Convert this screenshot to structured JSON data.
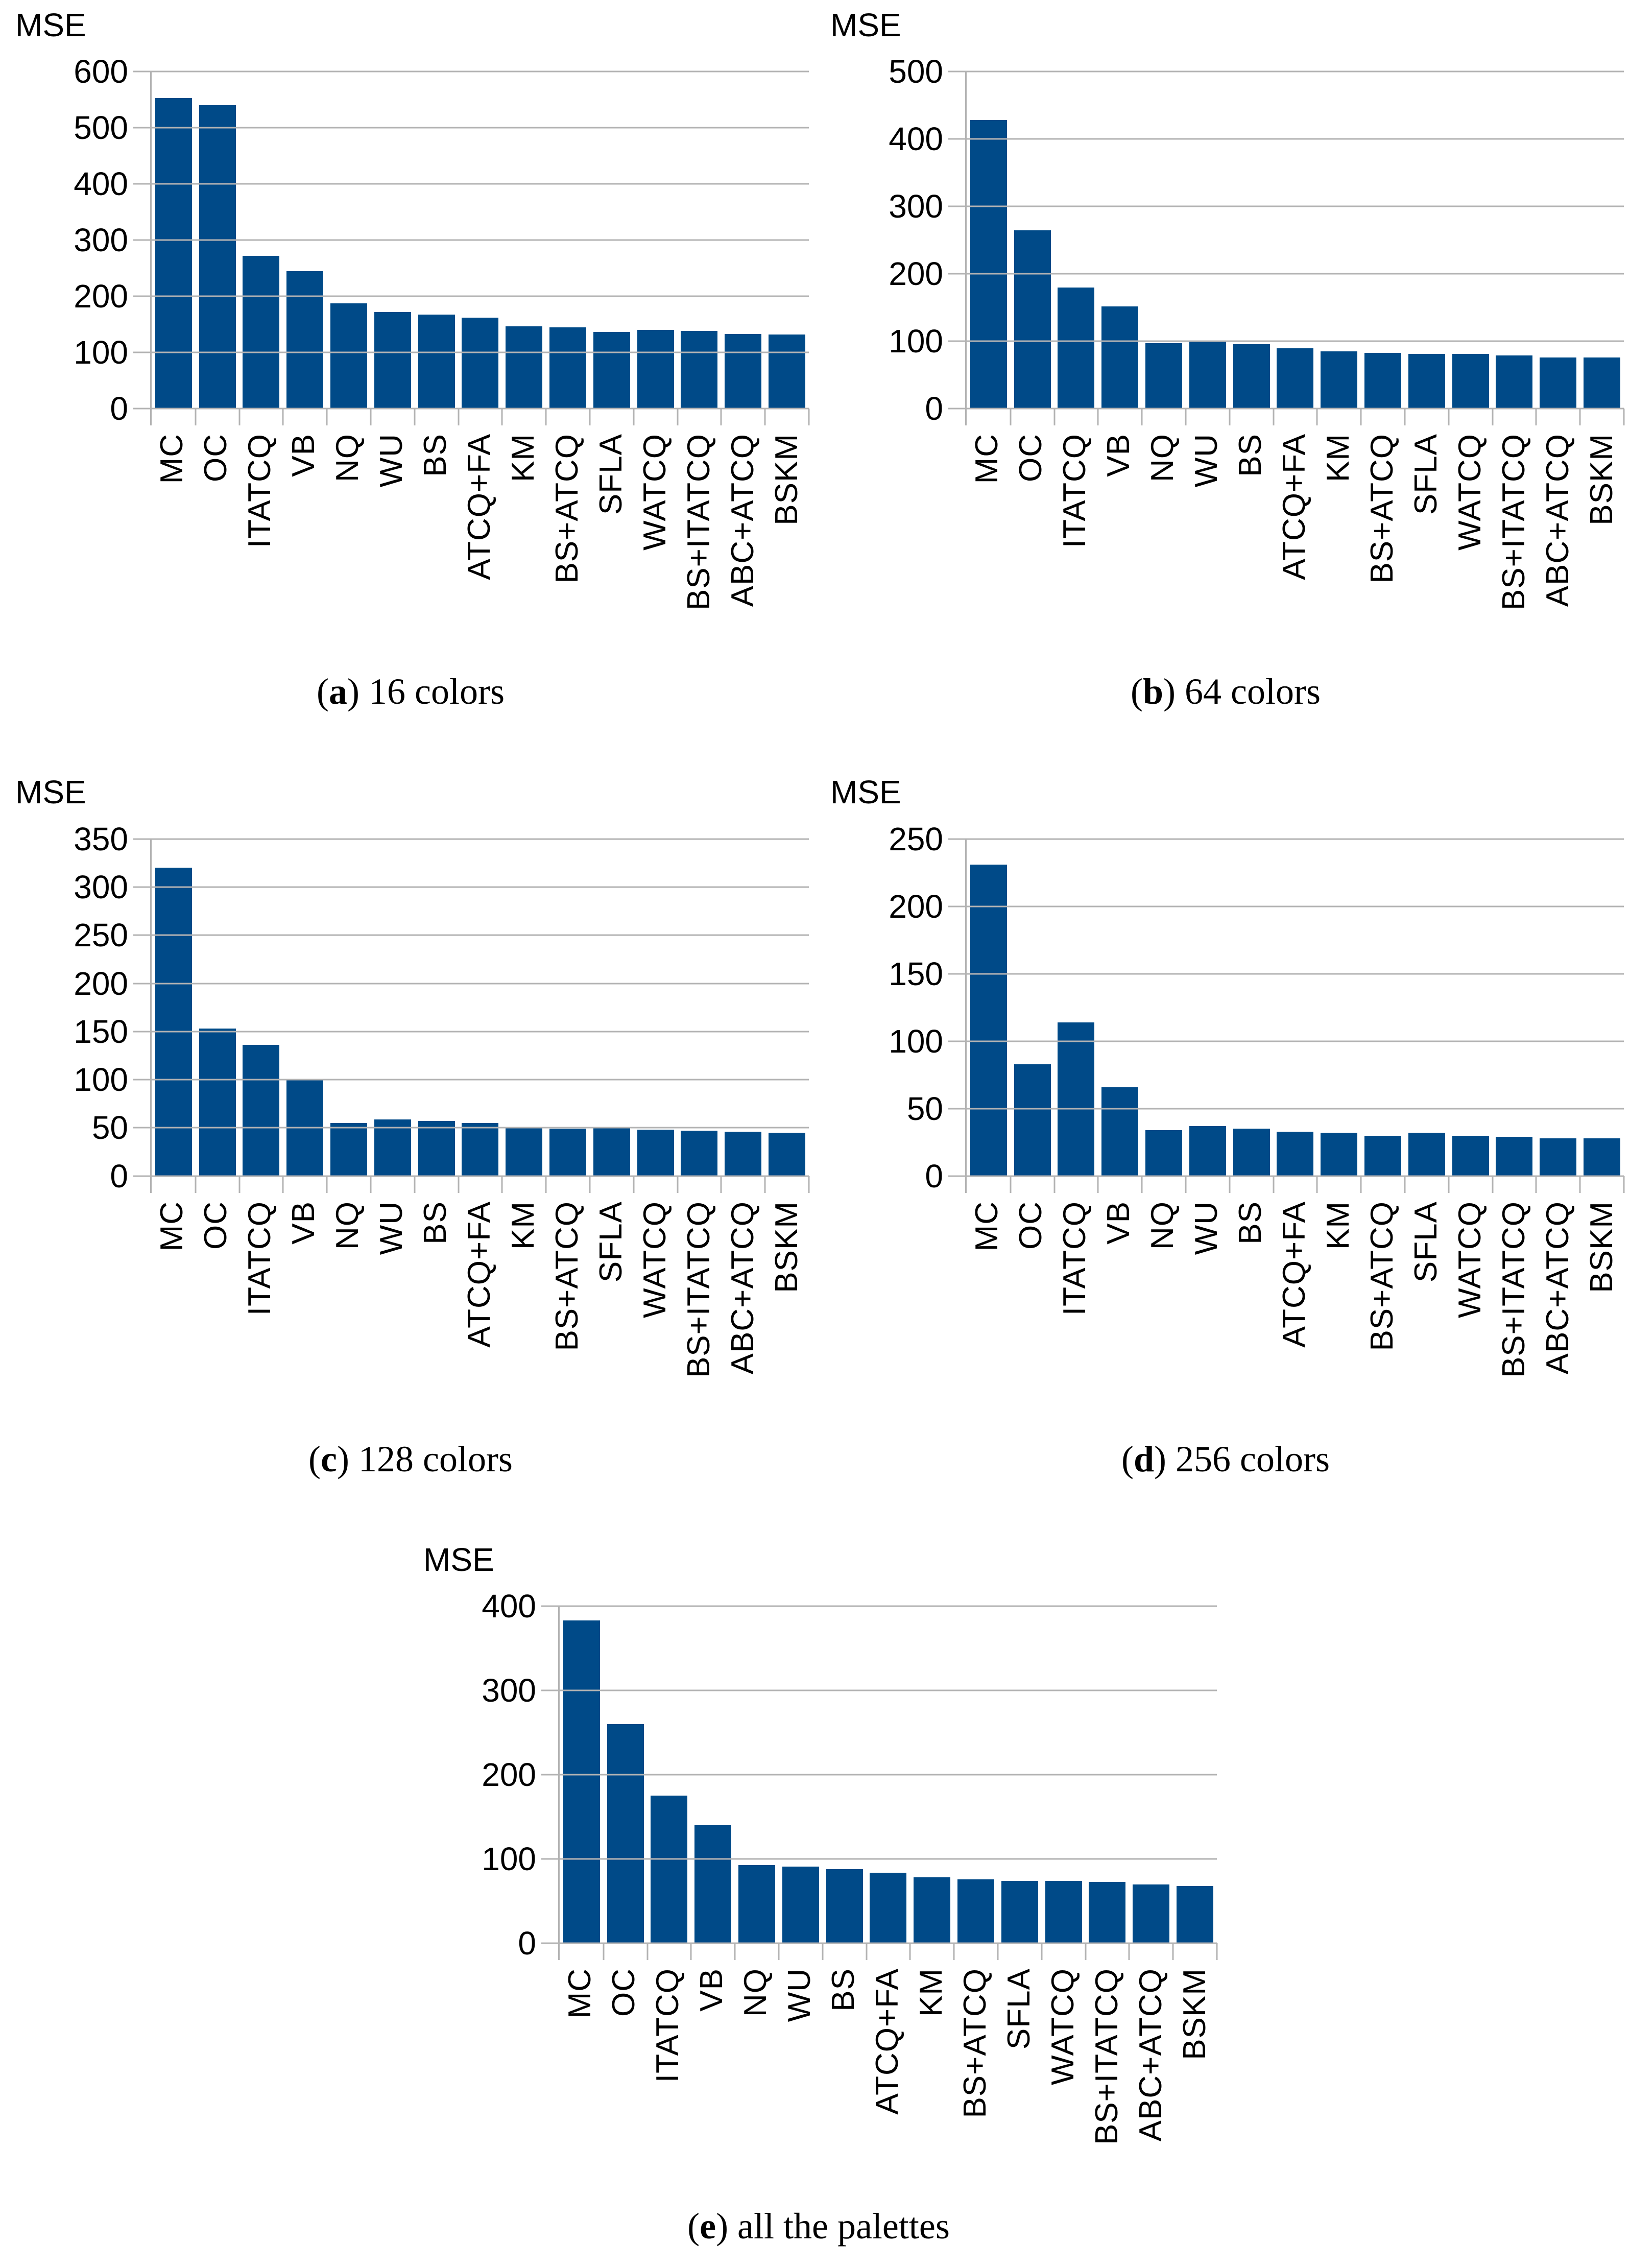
{
  "colors": {
    "bar": "#004a88",
    "grid": "#b3b3b3",
    "text": "#000000"
  },
  "chart_data": [
    {
      "type": "bar",
      "ylabel": "MSE",
      "caption": {
        "pre": "(",
        "letter": "a",
        "post": ") ",
        "label": "16 colors"
      },
      "categories": [
        "MC",
        "OC",
        "ITATCQ",
        "VB",
        "NQ",
        "WU",
        "BS",
        "ATCQ+FA",
        "KM",
        "BS+ATCQ",
        "SFLA",
        "WATCQ",
        "BS+ITATCQ",
        "ABC+ATCQ",
        "BSKM"
      ],
      "values": [
        553,
        540,
        272,
        245,
        188,
        172,
        168,
        162,
        147,
        145,
        137,
        140,
        139,
        133,
        132
      ],
      "ylim": [
        0,
        600
      ],
      "yticks": [
        0,
        100,
        200,
        300,
        400,
        500,
        600
      ],
      "grid": true,
      "legend": "none"
    },
    {
      "type": "bar",
      "ylabel": "MSE",
      "caption": {
        "pre": "(",
        "letter": "b",
        "post": ") ",
        "label": "64 colors"
      },
      "categories": [
        "MC",
        "OC",
        "ITATCQ",
        "VB",
        "NQ",
        "WU",
        "BS",
        "ATCQ+FA",
        "KM",
        "BS+ATCQ",
        "SFLA",
        "WATCQ",
        "BS+ITATCQ",
        "ABC+ATCQ",
        "BSKM"
      ],
      "values": [
        428,
        265,
        180,
        152,
        97,
        100,
        96,
        90,
        85,
        83,
        81,
        81,
        79,
        76,
        76
      ],
      "ylim": [
        0,
        500
      ],
      "yticks": [
        0,
        100,
        200,
        300,
        400,
        500
      ],
      "grid": true,
      "legend": "none"
    },
    {
      "type": "bar",
      "ylabel": "MSE",
      "caption": {
        "pre": "(",
        "letter": "c",
        "post": ") ",
        "label": "128 colors"
      },
      "categories": [
        "MC",
        "OC",
        "ITATCQ",
        "VB",
        "NQ",
        "WU",
        "BS",
        "ATCQ+FA",
        "KM",
        "BS+ATCQ",
        "SFLA",
        "WATCQ",
        "BS+ITATCQ",
        "ABC+ATCQ",
        "BSKM"
      ],
      "values": [
        320,
        153,
        136,
        100,
        55,
        59,
        57,
        55,
        51,
        49,
        51,
        48,
        47,
        46,
        45
      ],
      "ylim": [
        0,
        350
      ],
      "yticks": [
        0,
        50,
        100,
        150,
        200,
        250,
        300,
        350
      ],
      "grid": true,
      "legend": "none"
    },
    {
      "type": "bar",
      "ylabel": "MSE",
      "caption": {
        "pre": "(",
        "letter": "d",
        "post": ") ",
        "label": "256 colors"
      },
      "categories": [
        "MC",
        "OC",
        "ITATCQ",
        "VB",
        "NQ",
        "WU",
        "BS",
        "ATCQ+FA",
        "KM",
        "BS+ATCQ",
        "SFLA",
        "WATCQ",
        "BS+ITATCQ",
        "ABC+ATCQ",
        "BSKM"
      ],
      "values": [
        231,
        83,
        114,
        66,
        34,
        37,
        35,
        33,
        32,
        30,
        32,
        30,
        29,
        28,
        28
      ],
      "ylim": [
        0,
        250
      ],
      "yticks": [
        0,
        50,
        100,
        150,
        200,
        250
      ],
      "grid": true,
      "legend": "none"
    },
    {
      "type": "bar",
      "ylabel": "MSE",
      "caption": {
        "pre": "(",
        "letter": "e",
        "post": ") ",
        "label": "all the palettes"
      },
      "categories": [
        "MC",
        "OC",
        "ITATCQ",
        "VB",
        "NQ",
        "WU",
        "BS",
        "ATCQ+FA",
        "KM",
        "BS+ATCQ",
        "SFLA",
        "WATCQ",
        "BS+ITATCQ",
        "ABC+ATCQ",
        "BSKM"
      ],
      "values": [
        383,
        260,
        175,
        140,
        93,
        91,
        88,
        84,
        78,
        76,
        74,
        74,
        73,
        70,
        68
      ],
      "ylim": [
        0,
        400
      ],
      "yticks": [
        0,
        100,
        200,
        300,
        400
      ],
      "grid": true,
      "legend": "none"
    }
  ]
}
